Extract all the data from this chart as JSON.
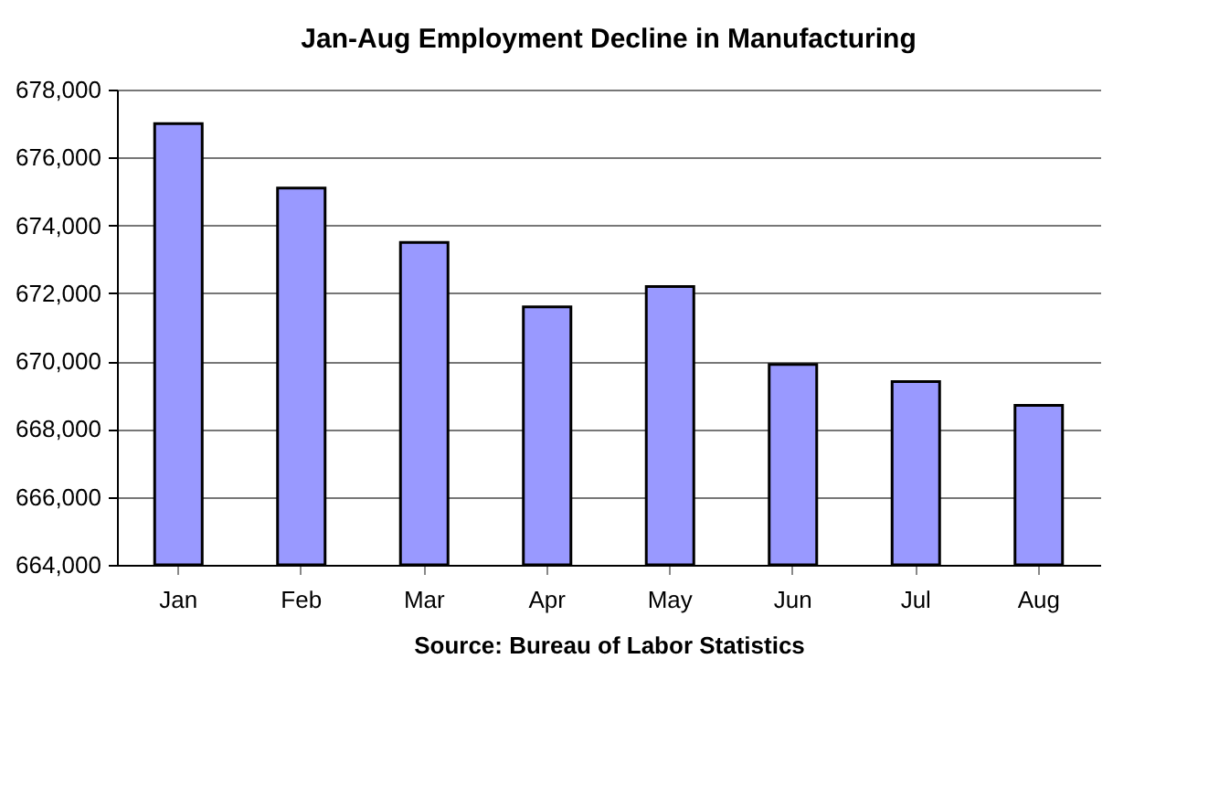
{
  "chart_data": {
    "type": "bar",
    "title": "Jan-Aug Employment Decline in Manufacturing",
    "categories": [
      "Jan",
      "Feb",
      "Mar",
      "Apr",
      "May",
      "Jun",
      "Jul",
      "Aug"
    ],
    "values": [
      677000,
      675100,
      673500,
      671600,
      672200,
      669900,
      669400,
      668700
    ],
    "color": "#9999ff",
    "ylim": [
      664000,
      678000
    ],
    "yticks": [
      {
        "value": 664000,
        "label": "664,000"
      },
      {
        "value": 666000,
        "label": "666,000"
      },
      {
        "value": 668000,
        "label": "668,000"
      },
      {
        "value": 670000,
        "label": "670,000"
      },
      {
        "value": 672000,
        "label": "672,000"
      },
      {
        "value": 674000,
        "label": "674,000"
      },
      {
        "value": 676000,
        "label": "676,000"
      },
      {
        "value": 678000,
        "label": "678,000"
      }
    ],
    "grid": "y",
    "annotations": [
      "Source:  Bureau of Labor Statistics"
    ]
  }
}
